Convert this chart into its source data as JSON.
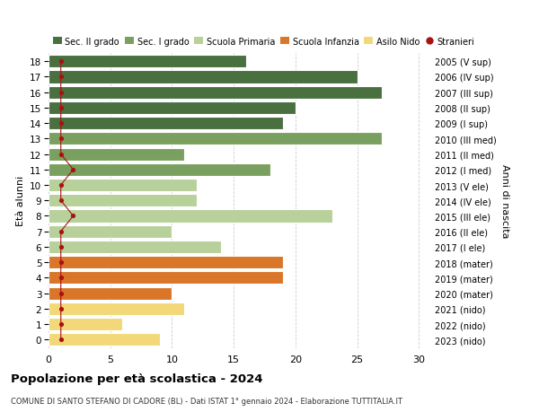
{
  "ages": [
    18,
    17,
    16,
    15,
    14,
    13,
    12,
    11,
    10,
    9,
    8,
    7,
    6,
    5,
    4,
    3,
    2,
    1,
    0
  ],
  "right_labels": [
    "2005 (V sup)",
    "2006 (IV sup)",
    "2007 (III sup)",
    "2008 (II sup)",
    "2009 (I sup)",
    "2010 (III med)",
    "2011 (II med)",
    "2012 (I med)",
    "2013 (V ele)",
    "2014 (IV ele)",
    "2015 (III ele)",
    "2016 (II ele)",
    "2017 (I ele)",
    "2018 (mater)",
    "2019 (mater)",
    "2020 (mater)",
    "2021 (nido)",
    "2022 (nido)",
    "2023 (nido)"
  ],
  "bar_values": [
    16,
    25,
    27,
    20,
    19,
    27,
    11,
    18,
    12,
    12,
    23,
    10,
    14,
    19,
    19,
    10,
    11,
    6,
    9
  ],
  "stranieri": [
    1,
    1,
    1,
    1,
    1,
    1,
    1,
    2,
    1,
    1,
    2,
    1,
    1,
    1,
    1,
    1,
    1,
    1,
    1
  ],
  "bar_colors": [
    "#4a7040",
    "#4a7040",
    "#4a7040",
    "#4a7040",
    "#4a7040",
    "#7aa060",
    "#7aa060",
    "#7aa060",
    "#b8d09a",
    "#b8d09a",
    "#b8d09a",
    "#b8d09a",
    "#b8d09a",
    "#d9762a",
    "#d9762a",
    "#d9762a",
    "#f2d878",
    "#f2d878",
    "#f2d878"
  ],
  "legend_colors": [
    "#4a7040",
    "#7aa060",
    "#b8d09a",
    "#d9762a",
    "#f2d878"
  ],
  "legend_labels": [
    "Sec. II grado",
    "Sec. I grado",
    "Scuola Primaria",
    "Scuola Infanzia",
    "Asilo Nido"
  ],
  "stranieri_color": "#aa1111",
  "stranieri_label": "Stranieri",
  "xlim": [
    0,
    31
  ],
  "xticks": [
    0,
    5,
    10,
    15,
    20,
    25,
    30
  ],
  "ylabel": "Età alunni",
  "right_ylabel": "Anni di nascita",
  "title": "Popolazione per età scolastica - 2024",
  "subtitle": "COMUNE DI SANTO STEFANO DI CADORE (BL) - Dati ISTAT 1° gennaio 2024 - Elaborazione TUTTITALIA.IT",
  "bg_color": "#ffffff",
  "grid_color": "#cccccc",
  "bar_height": 0.82
}
